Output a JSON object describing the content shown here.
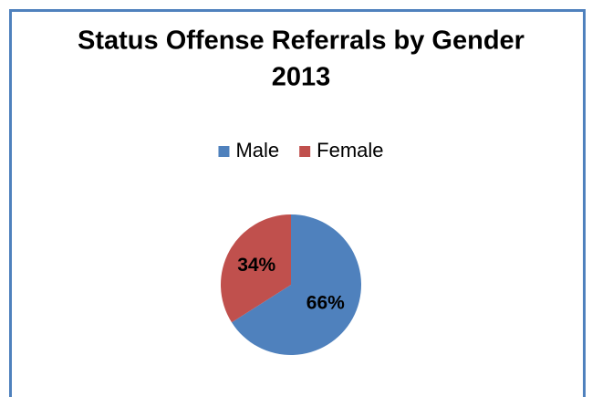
{
  "chart_data": {
    "type": "pie",
    "title": "Status Offense Referrals by Gender",
    "subtitle": "2013",
    "categories": [
      "Male",
      "Female"
    ],
    "values": [
      66,
      34
    ],
    "value_labels": [
      "66%",
      "34%"
    ],
    "colors": [
      "#4f81bd",
      "#c0504d"
    ],
    "legend": "top"
  }
}
